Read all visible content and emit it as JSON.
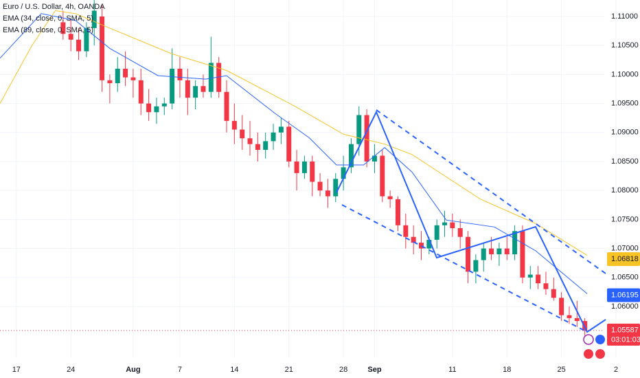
{
  "chart_data": {
    "type": "candlestick",
    "title": "Euro / U.S. Dollar, 4h, OANDA",
    "up_color": "#089981",
    "down_color": "#f23645",
    "xlim": [
      -2.1,
      75.5
    ],
    "xticks": [
      {
        "value": 0,
        "label": "17"
      },
      {
        "value": 7,
        "label": "24"
      },
      {
        "value": 15,
        "label": "Aug"
      },
      {
        "value": 21,
        "label": "7"
      },
      {
        "value": 28,
        "label": "14"
      },
      {
        "value": 35,
        "label": "21"
      },
      {
        "value": 42,
        "label": "28"
      },
      {
        "value": 46,
        "label": "Sep"
      },
      {
        "value": 56,
        "label": "11"
      },
      {
        "value": 63,
        "label": "18"
      },
      {
        "value": 70,
        "label": "25"
      },
      {
        "value": 77,
        "label": "2"
      }
    ],
    "ylim": [
      1.05123,
      1.11284
    ],
    "yticks": [
      {
        "value": 1.11,
        "label": "1.11000"
      },
      {
        "value": 1.105,
        "label": "1.10500"
      },
      {
        "value": 1.1,
        "label": "1.10000"
      },
      {
        "value": 1.095,
        "label": "1.09500"
      },
      {
        "value": 1.09,
        "label": "1.09000"
      },
      {
        "value": 1.085,
        "label": "1.08500"
      },
      {
        "value": 1.08,
        "label": "1.08000"
      },
      {
        "value": 1.075,
        "label": "1.07500"
      },
      {
        "value": 1.07,
        "label": "1.07000"
      },
      {
        "value": 1.065,
        "label": "1.06500"
      },
      {
        "value": 1.06,
        "label": "1.06000"
      }
    ],
    "grid": true,
    "x": [
      6,
      7,
      8,
      9,
      10,
      11,
      12,
      13,
      14,
      15,
      16,
      17,
      18,
      19,
      20,
      21,
      22,
      23,
      24,
      25,
      26,
      27,
      28,
      29,
      30,
      31,
      32,
      33,
      34,
      35,
      36,
      37,
      38,
      39,
      40,
      41,
      42,
      43,
      44,
      45,
      46,
      47,
      48,
      49,
      50,
      51,
      52,
      53,
      54,
      55,
      56,
      57,
      58,
      59,
      60,
      61,
      62,
      63,
      64,
      65,
      66,
      67,
      68,
      69,
      70,
      71,
      72,
      73
    ],
    "open": [
      1.109,
      1.107,
      1.106,
      1.104,
      1.108,
      1.11,
      1.099,
      1.0985,
      1.101,
      1.0995,
      1.099,
      1.095,
      1.0935,
      1.0945,
      1.095,
      1.101,
      1.099,
      1.096,
      1.098,
      1.097,
      1.102,
      1.097,
      1.092,
      1.0905,
      1.089,
      1.088,
      1.087,
      1.0885,
      1.09,
      1.091,
      1.085,
      1.083,
      1.085,
      1.0815,
      1.08,
      1.079,
      1.082,
      1.084,
      1.088,
      1.093,
      1.085,
      1.086,
      1.079,
      1.0785,
      1.074,
      1.072,
      1.071,
      1.07,
      1.0715,
      1.074,
      1.0745,
      1.0735,
      1.072,
      1.066,
      1.068,
      1.07,
      1.069,
      1.07,
      1.069,
      1.073,
      1.065,
      1.0655,
      1.064,
      1.063,
      1.0615,
      1.0585,
      1.058,
      1.0575
    ],
    "high": [
      1.111,
      1.1095,
      1.108,
      1.109,
      1.113,
      1.112,
      1.1,
      1.103,
      1.104,
      1.101,
      1.101,
      1.0975,
      1.096,
      1.096,
      1.1045,
      1.103,
      1.101,
      1.099,
      1.1,
      1.1065,
      1.103,
      1.099,
      1.095,
      1.093,
      1.092,
      1.09,
      1.09,
      1.0915,
      1.0925,
      1.092,
      1.087,
      1.086,
      1.086,
      1.083,
      1.082,
      1.083,
      1.086,
      1.089,
      1.0945,
      1.094,
      1.088,
      1.087,
      1.08,
      1.079,
      1.076,
      1.074,
      1.073,
      1.072,
      1.075,
      1.0765,
      1.076,
      1.075,
      1.073,
      1.069,
      1.071,
      1.072,
      1.071,
      1.072,
      1.074,
      1.074,
      1.067,
      1.067,
      1.066,
      1.065,
      1.0625,
      1.06,
      1.061,
      1.058
    ],
    "low": [
      1.106,
      1.104,
      1.1025,
      1.103,
      1.105,
      1.097,
      1.095,
      1.097,
      1.098,
      1.096,
      1.093,
      1.092,
      1.0915,
      1.093,
      1.094,
      1.096,
      1.093,
      1.094,
      1.096,
      1.096,
      1.096,
      1.09,
      1.088,
      1.087,
      1.086,
      1.085,
      1.0855,
      1.087,
      1.088,
      1.084,
      1.08,
      1.082,
      1.079,
      1.079,
      1.077,
      1.078,
      1.08,
      1.083,
      1.086,
      1.084,
      1.083,
      1.078,
      1.077,
      1.073,
      1.07,
      1.069,
      1.068,
      1.069,
      1.07,
      1.072,
      1.072,
      1.07,
      1.064,
      1.064,
      1.066,
      1.068,
      1.067,
      1.068,
      1.068,
      1.064,
      1.063,
      1.063,
      1.062,
      1.061,
      1.0575,
      1.057,
      1.0565,
      1.055
    ],
    "close": [
      1.107,
      1.106,
      1.104,
      1.108,
      1.111,
      1.099,
      1.0985,
      1.101,
      1.0995,
      1.099,
      1.095,
      1.0935,
      1.0945,
      1.095,
      1.101,
      1.099,
      1.096,
      1.098,
      1.097,
      1.102,
      1.097,
      1.092,
      1.0905,
      1.089,
      1.088,
      1.087,
      1.0885,
      1.09,
      1.091,
      1.085,
      1.083,
      1.085,
      1.0815,
      1.08,
      1.079,
      1.082,
      1.084,
      1.088,
      1.093,
      1.085,
      1.086,
      1.079,
      1.0785,
      1.074,
      1.072,
      1.071,
      1.07,
      1.0715,
      1.074,
      1.0745,
      1.0735,
      1.072,
      1.066,
      1.068,
      1.07,
      1.069,
      1.07,
      1.069,
      1.073,
      1.065,
      1.0655,
      1.064,
      1.063,
      1.0615,
      1.0585,
      1.058,
      1.0575,
      1.0559
    ],
    "series": [
      {
        "name": "EMA (34, close, 0, SMA, 5)",
        "color": "#2962ff",
        "x": [
          -2.1,
          3.2,
          7.6,
          12,
          18.2,
          24.3,
          27,
          33.2,
          37.6,
          41.1,
          44.6,
          47.3,
          50.8,
          55.2,
          61.4,
          66.7,
          73.3
        ],
        "values": [
          1.1028,
          1.1105,
          1.1093,
          1.1045,
          1.0998,
          1.0992,
          1.0998,
          1.0933,
          1.0891,
          1.0844,
          1.0844,
          1.0874,
          1.0832,
          1.0749,
          1.0737,
          1.0696,
          1.0622
        ]
      },
      {
        "name": "EMA (89, close, 0, SMA, 5)",
        "color": "#f7c325",
        "x": [
          -2.1,
          2,
          5,
          7.6,
          12,
          19.9,
          27,
          35.8,
          42,
          47.3,
          50.8,
          59.6,
          66.7,
          73.3
        ],
        "values": [
          1.095,
          1.105,
          1.111,
          1.1105,
          1.108,
          1.1036,
          1.1007,
          1.0945,
          1.0897,
          1.088,
          1.0862,
          1.0785,
          1.0743,
          1.0688
        ]
      }
    ],
    "price_labels": [
      {
        "value": 1.06818,
        "color": "#f7c325",
        "text_color": "#131722"
      },
      {
        "value": 1.06195,
        "color": "#2962ff",
        "text_color": "#ffffff"
      },
      {
        "value": 1.05587,
        "color": "#f23645",
        "text_color": "#ffffff"
      }
    ],
    "countdown": "03:01:03"
  }
}
